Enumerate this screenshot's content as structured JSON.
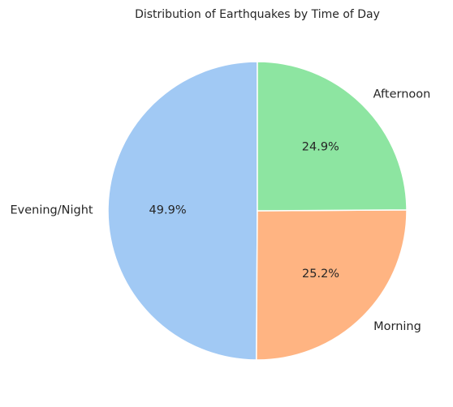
{
  "chart_data": {
    "type": "pie",
    "title": "Distribution of Earthquakes by Time of Day",
    "start_angle_deg": 90,
    "direction": "counterclockwise",
    "slices": [
      {
        "label": "Evening/Night",
        "percent": 49.9,
        "pct_text": "49.9%",
        "color": "#a1c9f4"
      },
      {
        "label": "Morning",
        "percent": 25.2,
        "pct_text": "25.2%",
        "color": "#ffb482"
      },
      {
        "label": "Afternoon",
        "percent": 24.9,
        "pct_text": "24.9%",
        "color": "#8de5a1"
      }
    ]
  }
}
